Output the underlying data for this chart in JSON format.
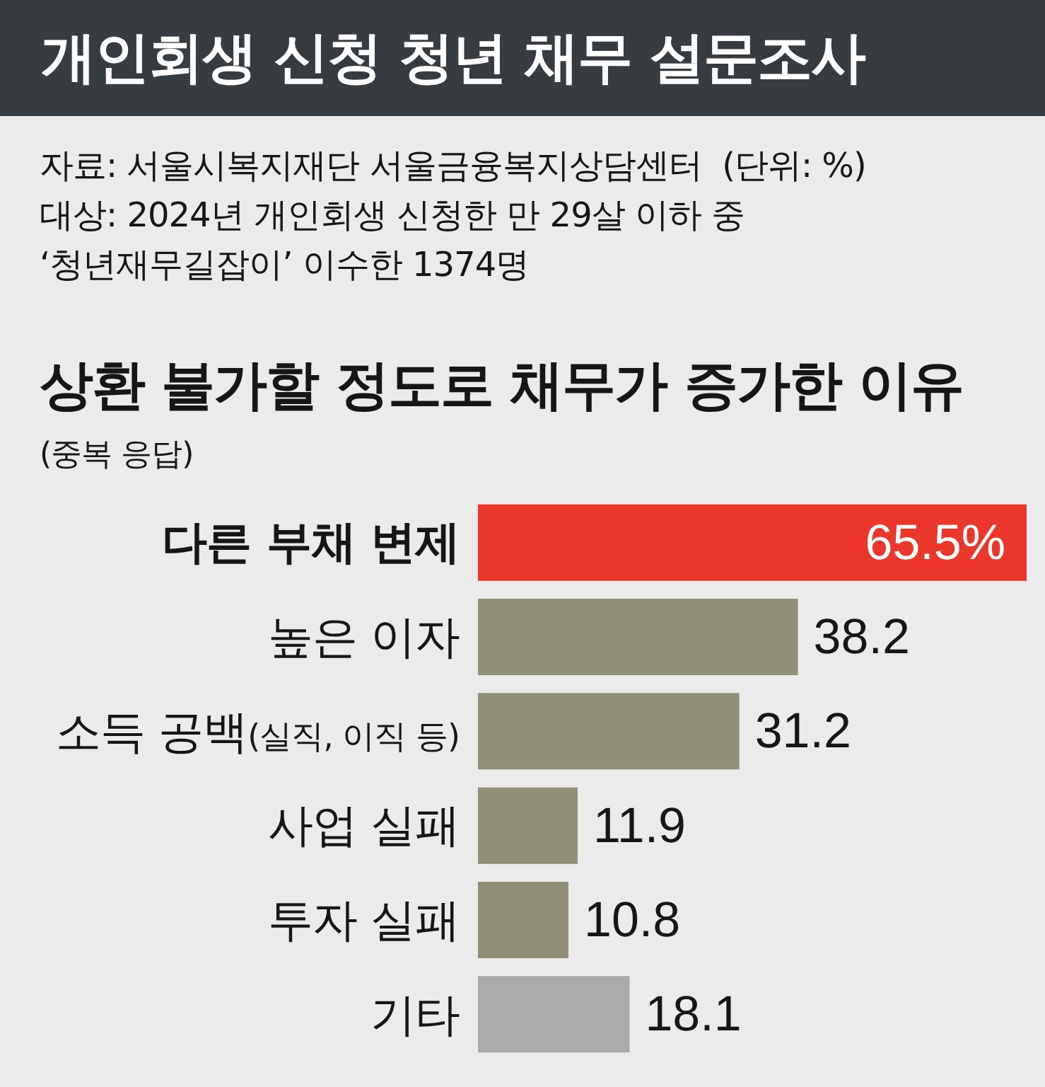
{
  "chart_data": {
    "type": "bar",
    "orientation": "horizontal",
    "title": "개인회생 신청 청년 채무 설문조사",
    "subtitle": "상환 불가할 정도로 채무가 증가한 이유",
    "annotations": [
      "자료: 서울시복지재단 서울금융복지상담센터  (단위: %)",
      "대상: 2024년 개인회생 신청한 만 29살 이하 중",
      "‘청년재무길잡이’ 이수한 1374명",
      "(중복 응답)"
    ],
    "categories": [
      "다른 부채 변제",
      "높은 이자",
      "소득 공백(실직, 이직 등)",
      "사업 실패",
      "투자 실패",
      "기타"
    ],
    "values": [
      65.5,
      38.2,
      31.2,
      11.9,
      10.8,
      18.1
    ],
    "colors": [
      "#eb3729",
      "#928f78",
      "#928f78",
      "#928f78",
      "#928f78",
      "#aaaaaa"
    ],
    "value_labels": [
      "65.5%",
      "38.2",
      "31.2",
      "11.9",
      "10.8",
      "18.1"
    ]
  }
}
